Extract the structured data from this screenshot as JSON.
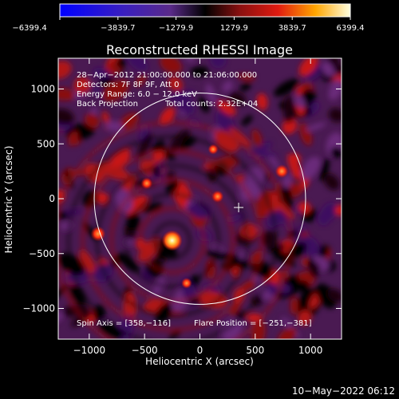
{
  "chart_data": {
    "type": "heatmap",
    "title": "Reconstructed RHESSI Image",
    "xlabel": "Heliocentric X (arcsec)",
    "ylabel": "Heliocentric Y (arcsec)",
    "xlim": [
      -1280,
      1280
    ],
    "ylim": [
      -1280,
      1280
    ],
    "xticks": [
      -1000,
      -500,
      0,
      500,
      1000
    ],
    "xtick_labels": [
      "−1000",
      "−500",
      "0",
      "500",
      "1000"
    ],
    "yticks": [
      -1000,
      -500,
      0,
      500,
      1000
    ],
    "ytick_labels": [
      "−1000",
      "−500",
      "0",
      "500",
      "1000"
    ],
    "colorbar": {
      "range": [
        -6399.4,
        6399.4
      ],
      "ticks": [
        -6399.4,
        -3839.7,
        -1279.9,
        1279.9,
        3839.7,
        6399.4
      ],
      "tick_labels": [
        "−6399.4",
        "−3839.7",
        "−1279.9",
        "1279.9",
        "3839.7",
        "6399.4"
      ]
    },
    "solar_disk": {
      "center": [
        0,
        0
      ],
      "radius": 955
    },
    "marker_plus": [
      350,
      -80
    ],
    "annotations": {
      "time_range": "28−Apr−2012 21:00:00.000 to 21:06:00.000",
      "detectors": "Detectors: 7F 8F 9F, Att 0",
      "energy_range": "Energy Range: 6.0 − 12.0 keV",
      "method": "Back Projection",
      "total_counts": "Total counts: 2.32E+04",
      "spin_axis": "Spin Axis = [358,−116]",
      "flare_position": "Flare Position = [−251,−381]"
    },
    "sources": [
      {
        "x": -251,
        "y": -381,
        "value": 6399.4
      },
      {
        "x": -920,
        "y": -320,
        "value": 3900
      },
      {
        "x": 740,
        "y": 250,
        "value": 3200
      },
      {
        "x": 160,
        "y": 20,
        "value": 2600
      },
      {
        "x": -480,
        "y": 140,
        "value": 2400
      },
      {
        "x": 120,
        "y": 450,
        "value": 1800
      },
      {
        "x": -120,
        "y": -770,
        "value": 2000
      }
    ]
  },
  "footer": {
    "timestamp": "10−May−2022 06:12"
  }
}
